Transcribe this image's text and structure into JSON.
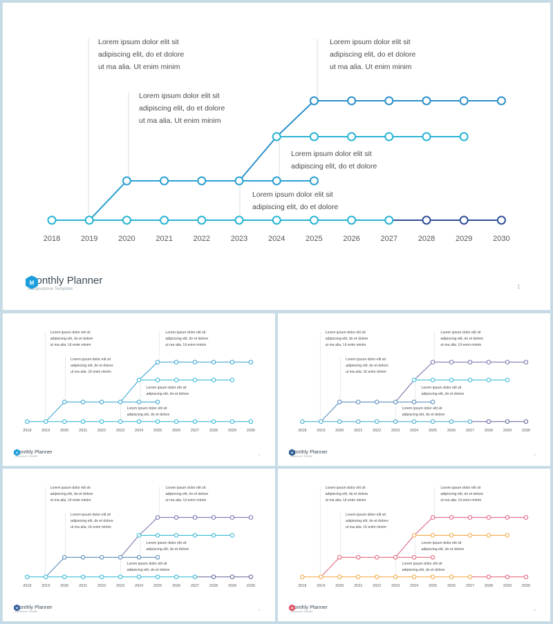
{
  "slides": [
    {
      "id": "main",
      "brand": {
        "title": "Monthly Planner",
        "subtitle": "Multipurpose Template",
        "initial": "M",
        "hex_color": "#1a9fdc"
      },
      "page_number": "1",
      "colors": {
        "base": "#27b3d3",
        "base_end": "#2f4d96",
        "upper": "#2a8fca",
        "middle": "#27b3d3",
        "step": "#2a9fd3"
      }
    },
    {
      "id": "small-1",
      "brand": {
        "title": "Monthly Planner",
        "subtitle": "Multipurpose Template",
        "initial": "M",
        "hex_color": "#1a9fdc"
      },
      "page_number": "2",
      "colors": {
        "base": "#27b3d3",
        "base_end": "#27b3d3",
        "upper": "#2a9fd3",
        "middle": "#27b3d3",
        "step": "#2a9fd3"
      }
    },
    {
      "id": "small-2",
      "brand": {
        "title": "Monthly Planner",
        "subtitle": "Multipurpose Template",
        "initial": "M",
        "hex_color": "#2f5f95"
      },
      "page_number": "3",
      "colors": {
        "base": "#3aa6c7",
        "base_end": "#5b5f98",
        "upper": "#6a6aa8",
        "middle": "#27b3d3",
        "step": "#4a7fb5"
      }
    },
    {
      "id": "small-3",
      "brand": {
        "title": "Monthly Planner",
        "subtitle": "Multipurpose Template",
        "initial": "M",
        "hex_color": "#3e63a0"
      },
      "page_number": "4",
      "colors": {
        "base": "#27b3d3",
        "base_end": "#5b5f98",
        "upper": "#6a6aa8",
        "middle": "#27b3d3",
        "step": "#4a7fb5"
      }
    },
    {
      "id": "small-4",
      "brand": {
        "title": "Monthly Planner",
        "subtitle": "Multipurpose Template",
        "initial": "M",
        "hex_color": "#e05a6e"
      },
      "page_number": "5",
      "colors": {
        "base": "#f2a33a",
        "base_end": "#e05a6e",
        "upper": "#e0587a",
        "middle": "#f2a33a",
        "step": "#e05a6e"
      }
    }
  ],
  "timeline": {
    "years": [
      "2018",
      "2019",
      "2020",
      "2021",
      "2022",
      "2023",
      "2024",
      "2025",
      "2026",
      "2027",
      "2028",
      "2029",
      "2030"
    ],
    "base_line": {
      "from_year": "2018",
      "to_year": "2030"
    },
    "step_line": {
      "from_year": "2020",
      "to_year": "2025"
    },
    "middle_line": {
      "from_year": "2024",
      "to_year": "2029"
    },
    "upper_line": {
      "from_year": "2025",
      "to_year": "2030"
    },
    "notes": [
      {
        "id": "note-a",
        "lines": [
          "Lorem ipsum dolor elit sit",
          "adipiscing elit, do et dolore",
          "ut ma alia. Ut enim minim"
        ]
      },
      {
        "id": "note-b",
        "lines": [
          "Lorem ipsum dolor elit sit",
          "adipiscing elit, do et dolore",
          "ut ma alia. Ut enim minim"
        ]
      },
      {
        "id": "note-c",
        "lines": [
          "Lorem ipsum dolor elit sit",
          "adipiscing elit, do et dolore",
          "ut ma alia. Ut enim minim"
        ]
      },
      {
        "id": "note-d",
        "lines": [
          "Lorem ipsum dolor elit sit",
          "adipiscing elit, do et dolore"
        ]
      },
      {
        "id": "note-e",
        "lines": [
          "Lorem ipsum dolor elit sit",
          "adipiscing elit, do et dolore"
        ]
      }
    ]
  }
}
